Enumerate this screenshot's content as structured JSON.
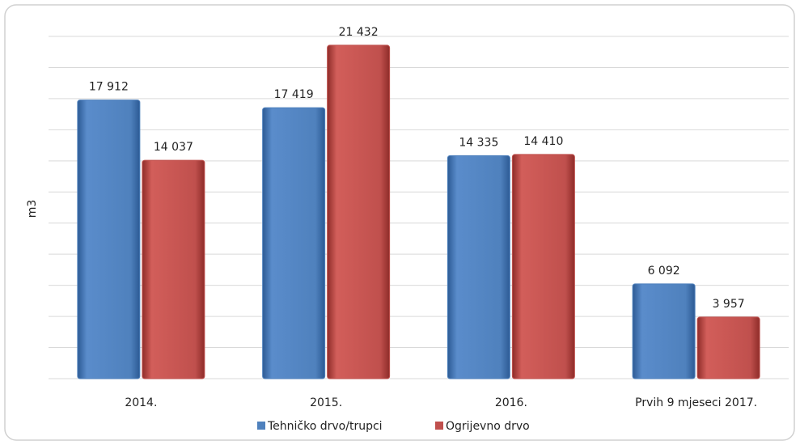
{
  "chart_data": {
    "type": "bar",
    "y_label": "m3",
    "categories": [
      "2014.",
      "2015.",
      "2016.",
      "Prvih 9 mjeseci 2017."
    ],
    "series": [
      {
        "name": "Tehničko drvo/trupci",
        "color": "#4f81bd",
        "values": [
          17912,
          17419,
          14335,
          6092
        ],
        "value_labels": [
          "17 912",
          "17 419",
          "14 335",
          "6 092"
        ]
      },
      {
        "name": "Ogrijevno drvo",
        "color": "#c0504d",
        "values": [
          14037,
          21432,
          14410,
          3957
        ],
        "value_labels": [
          "14 037",
          "21 432",
          "14 410",
          "3 957"
        ]
      }
    ],
    "ylim": [
      0,
      22000
    ],
    "yticks": [
      0,
      2000,
      4000,
      6000,
      8000,
      10000,
      12000,
      14000,
      16000,
      18000,
      20000,
      22000
    ],
    "ytick_labels": false,
    "grid": true,
    "legend": "bottom"
  }
}
